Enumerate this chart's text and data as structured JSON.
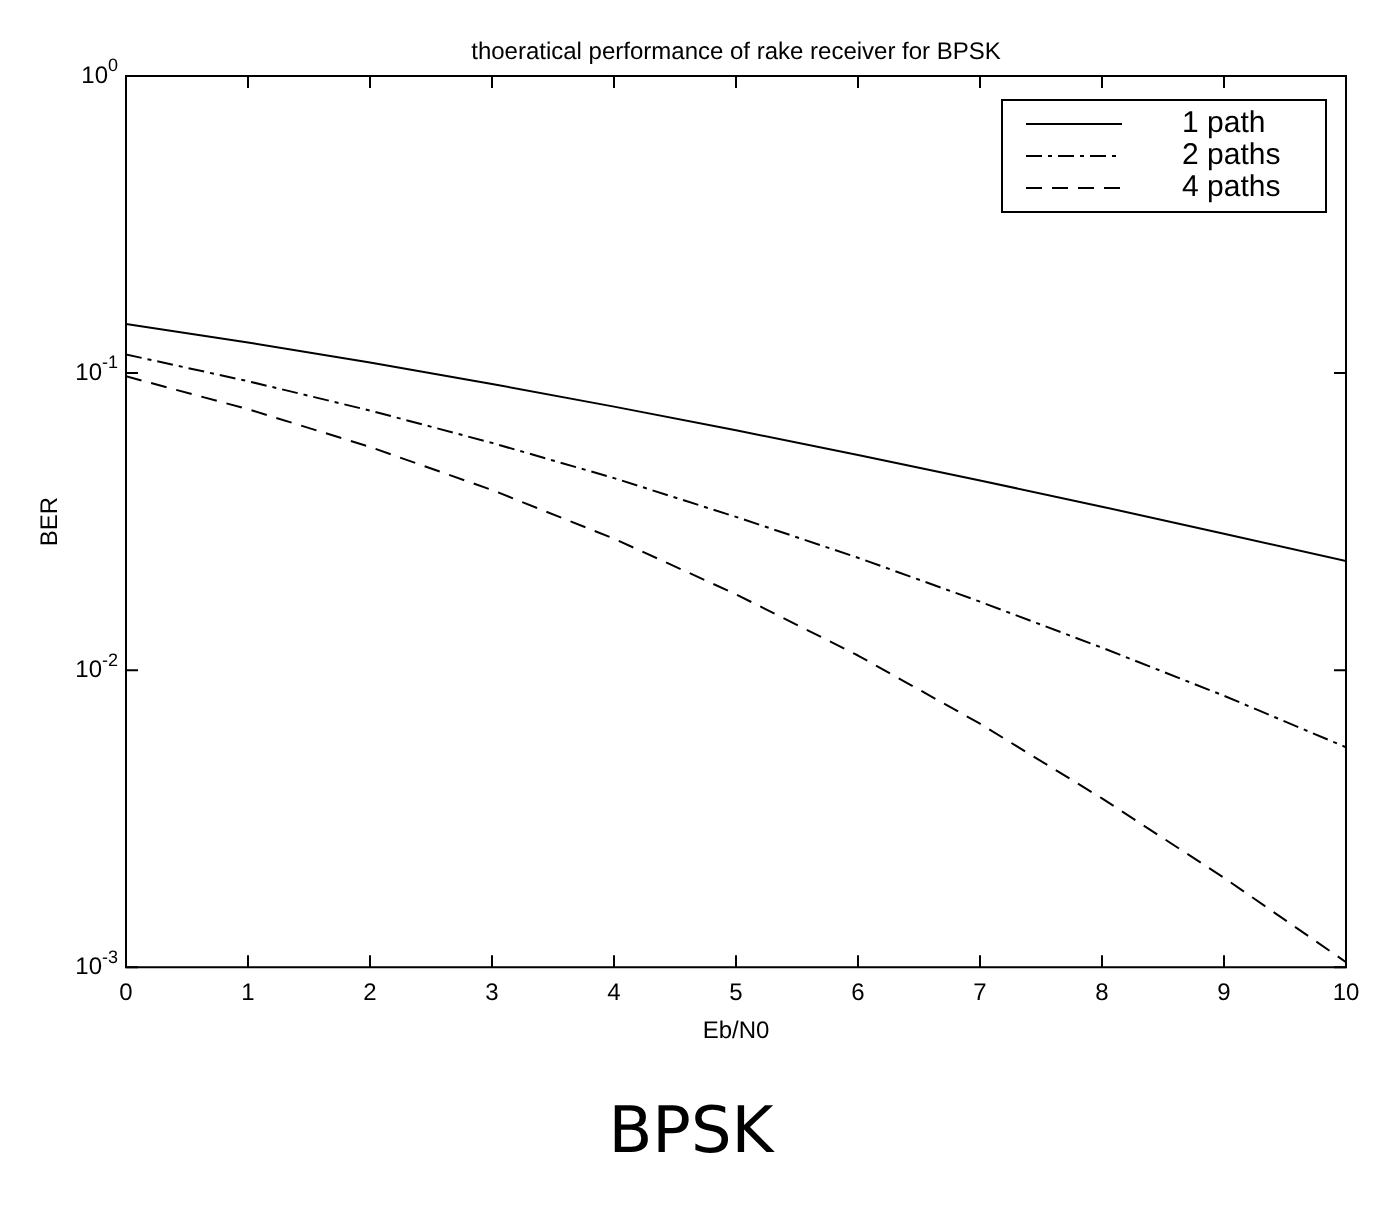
{
  "chart_data": {
    "type": "line",
    "title": "thoeratical performance of rake receiver for BPSK",
    "xlabel": "Eb/N0",
    "ylabel": "BER",
    "annotations": [
      "BPSK"
    ],
    "x": [
      0,
      1,
      2,
      3,
      4,
      5,
      6,
      7,
      8,
      9,
      10
    ],
    "series": [
      {
        "name": "1 path",
        "color": "#000000",
        "line_style": "solid",
        "values": [
          0.1464,
          0.1268,
          0.1085,
          0.0919,
          0.0771,
          0.0642,
          0.053,
          0.0435,
          0.0355,
          0.0288,
          0.0233
        ]
      },
      {
        "name": "2 paths",
        "color": "#000000",
        "line_style": "dashdot",
        "values": [
          0.1155,
          0.0939,
          0.0748,
          0.0582,
          0.0443,
          0.0328,
          0.0239,
          0.017,
          0.0119,
          0.0082,
          0.0055
        ]
      },
      {
        "name": "4 paths",
        "color": "#000000",
        "line_style": "dashed",
        "values": [
          0.0975,
          0.0756,
          0.0564,
          0.0404,
          0.0277,
          0.018,
          0.0112,
          0.0066,
          0.0037,
          0.002,
          0.00104
        ]
      }
    ],
    "xlim": [
      0,
      10
    ],
    "xticks": [
      0,
      1,
      2,
      3,
      4,
      5,
      6,
      7,
      8,
      9,
      10
    ],
    "ylim": [
      0.001,
      1
    ],
    "yticks": [
      {
        "value": 0.001,
        "label": "10$^{-3}$"
      },
      {
        "value": 0.01,
        "label": "10$^{-2}$"
      },
      {
        "value": 0.1,
        "label": "10$^{-1}$"
      },
      {
        "value": 1,
        "label": "10$^{0}$"
      }
    ],
    "log": "y",
    "grid": false,
    "legend": "top right",
    "marker": "none"
  }
}
